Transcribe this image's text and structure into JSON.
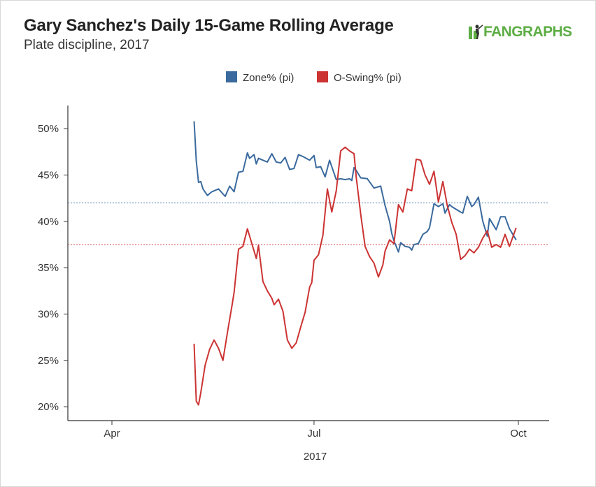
{
  "header": {
    "title": "Gary Sanchez's Daily 15-Game Rolling Average",
    "subtitle": "Plate discipline, 2017",
    "logo_text": "FANGRAPHS"
  },
  "chart_data": {
    "type": "line",
    "title": "Gary Sanchez's Daily 15-Game Rolling Average",
    "subtitle": "Plate discipline, 2017",
    "xlabel": "2017",
    "ylabel": "",
    "x_ticks": [
      "Apr",
      "Jul",
      "Oct"
    ],
    "y_ticks": [
      "20%",
      "25%",
      "30%",
      "35%",
      "40%",
      "45%",
      "50%"
    ],
    "ylim": [
      18.5,
      52.5
    ],
    "legend_position": "top-center",
    "grid": false,
    "reference_lines": [
      {
        "series": "Zone% (pi)",
        "value": 42.0,
        "style": "dotted"
      },
      {
        "series": "O-Swing% (pi)",
        "value": 37.5,
        "style": "dotted"
      }
    ],
    "series": [
      {
        "name": "Zone% (pi)",
        "color": "#3a6a9e",
        "x": [
          "2017-05-08",
          "2017-05-09",
          "2017-05-10",
          "2017-05-11",
          "2017-05-12",
          "2017-05-14",
          "2017-05-16",
          "2017-05-19",
          "2017-05-22",
          "2017-05-24",
          "2017-05-26",
          "2017-05-28",
          "2017-05-30",
          "2017-06-01",
          "2017-06-02",
          "2017-06-04",
          "2017-06-05",
          "2017-06-06",
          "2017-06-08",
          "2017-06-10",
          "2017-06-12",
          "2017-06-14",
          "2017-06-16",
          "2017-06-18",
          "2017-06-20",
          "2017-06-22",
          "2017-06-24",
          "2017-06-26",
          "2017-06-29",
          "2017-07-01",
          "2017-07-02",
          "2017-07-04",
          "2017-07-06",
          "2017-07-08",
          "2017-07-11",
          "2017-07-13",
          "2017-07-15",
          "2017-07-17",
          "2017-07-18",
          "2017-07-19",
          "2017-07-20",
          "2017-07-22",
          "2017-07-25",
          "2017-07-28",
          "2017-07-31",
          "2017-08-02",
          "2017-08-04",
          "2017-08-05",
          "2017-08-06",
          "2017-08-08",
          "2017-08-09",
          "2017-08-11",
          "2017-08-13",
          "2017-08-14",
          "2017-08-15",
          "2017-08-17",
          "2017-08-19",
          "2017-08-21",
          "2017-08-22",
          "2017-08-24",
          "2017-08-26",
          "2017-08-28",
          "2017-08-29",
          "2017-08-31",
          "2017-09-01",
          "2017-09-03",
          "2017-09-05",
          "2017-09-06",
          "2017-09-08",
          "2017-09-10",
          "2017-09-11",
          "2017-09-13",
          "2017-09-15",
          "2017-09-17",
          "2017-09-18",
          "2017-09-21",
          "2017-09-23",
          "2017-09-25",
          "2017-09-27",
          "2017-09-30"
        ],
        "values": [
          50.8,
          46.5,
          44.2,
          44.3,
          43.5,
          42.8,
          43.2,
          43.5,
          42.7,
          43.8,
          43.2,
          45.3,
          45.4,
          47.4,
          46.8,
          47.2,
          46.2,
          46.8,
          46.6,
          46.4,
          47.3,
          46.4,
          46.3,
          46.9,
          45.6,
          45.7,
          47.2,
          47.0,
          46.6,
          47.1,
          45.8,
          45.9,
          44.8,
          46.6,
          44.5,
          44.6,
          44.5,
          44.6,
          44.4,
          45.8,
          45.5,
          44.7,
          44.6,
          43.6,
          43.8,
          41.7,
          40.0,
          38.7,
          37.9,
          36.7,
          37.7,
          37.3,
          37.2,
          36.9,
          37.5,
          37.6,
          38.6,
          38.9,
          39.3,
          41.9,
          41.6,
          41.9,
          40.9,
          41.8,
          41.6,
          41.3,
          41.0,
          40.9,
          42.7,
          41.6,
          41.8,
          42.6,
          40.0,
          38.4,
          40.3,
          39.1,
          40.5,
          40.5,
          39.2,
          38.0
        ]
      },
      {
        "name": "O-Swing% (pi)",
        "color": "#cc3333",
        "x": [
          "2017-05-08",
          "2017-05-09",
          "2017-05-10",
          "2017-05-11",
          "2017-05-13",
          "2017-05-15",
          "2017-05-17",
          "2017-05-19",
          "2017-05-21",
          "2017-05-23",
          "2017-05-25",
          "2017-05-26",
          "2017-05-28",
          "2017-05-30",
          "2017-06-01",
          "2017-06-03",
          "2017-06-05",
          "2017-06-06",
          "2017-06-08",
          "2017-06-10",
          "2017-06-12",
          "2017-06-13",
          "2017-06-15",
          "2017-06-17",
          "2017-06-19",
          "2017-06-21",
          "2017-06-23",
          "2017-06-25",
          "2017-06-27",
          "2017-06-29",
          "2017-06-30",
          "2017-07-01",
          "2017-07-03",
          "2017-07-05",
          "2017-07-07",
          "2017-07-09",
          "2017-07-11",
          "2017-07-13",
          "2017-07-15",
          "2017-07-17",
          "2017-07-19",
          "2017-07-20",
          "2017-07-22",
          "2017-07-24",
          "2017-07-26",
          "2017-07-28",
          "2017-07-30",
          "2017-08-01",
          "2017-08-02",
          "2017-08-04",
          "2017-08-06",
          "2017-08-08",
          "2017-08-10",
          "2017-08-12",
          "2017-08-14",
          "2017-08-16",
          "2017-08-18",
          "2017-08-20",
          "2017-08-22",
          "2017-08-24",
          "2017-08-26",
          "2017-08-28",
          "2017-08-30",
          "2017-09-01",
          "2017-09-03",
          "2017-09-05",
          "2017-09-07",
          "2017-09-09",
          "2017-09-11",
          "2017-09-13",
          "2017-09-15",
          "2017-09-17",
          "2017-09-19",
          "2017-09-21",
          "2017-09-23",
          "2017-09-25",
          "2017-09-27",
          "2017-09-30"
        ],
        "values": [
          26.8,
          20.6,
          20.2,
          21.5,
          24.5,
          26.2,
          27.2,
          26.3,
          25.0,
          28.0,
          30.8,
          32.3,
          37.0,
          37.3,
          39.2,
          37.6,
          36.0,
          37.4,
          33.5,
          32.5,
          31.7,
          31.0,
          31.6,
          30.3,
          27.2,
          26.3,
          26.9,
          28.6,
          30.2,
          32.9,
          33.4,
          35.8,
          36.4,
          38.5,
          43.5,
          41.0,
          43.3,
          47.6,
          48.0,
          47.6,
          47.3,
          44.8,
          40.8,
          37.3,
          36.2,
          35.5,
          34.0,
          35.3,
          36.8,
          38.0,
          37.6,
          41.8,
          41.0,
          43.5,
          43.3,
          46.7,
          46.6,
          45.0,
          44.0,
          45.4,
          42.1,
          44.3,
          41.7,
          39.9,
          38.6,
          35.9,
          36.3,
          37.0,
          36.6,
          37.2,
          38.2,
          39.0,
          37.2,
          37.5,
          37.2,
          38.6,
          37.3,
          39.3
        ]
      }
    ]
  }
}
